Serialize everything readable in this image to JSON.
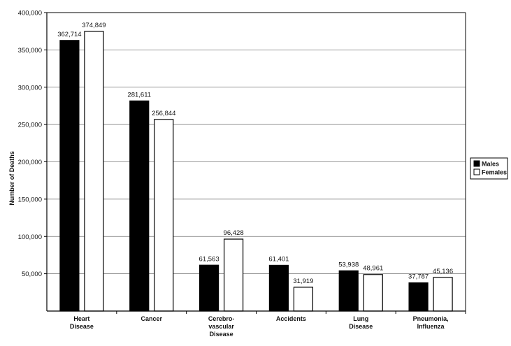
{
  "chart_data": {
    "type": "bar",
    "title": "",
    "xlabel": "",
    "ylabel": "Number of Deaths",
    "ylim": [
      0,
      400000
    ],
    "y_ticks": [
      "50,000",
      "100,000",
      "150,000",
      "200,000",
      "250,000",
      "300,000",
      "350,000",
      "400,000"
    ],
    "y_tick_values": [
      50000,
      100000,
      150000,
      200000,
      250000,
      300000,
      350000,
      400000
    ],
    "grid": true,
    "legend_position": "right",
    "categories": [
      [
        "Heart",
        "Disease"
      ],
      [
        "Cancer"
      ],
      [
        "Cerebro-",
        "vascular",
        "Disease"
      ],
      [
        "Accidents"
      ],
      [
        "Lung",
        "Disease"
      ],
      [
        "Pneumonia,",
        "Influenza"
      ]
    ],
    "series": [
      {
        "name": "Males",
        "color": "#000000",
        "values": [
          362714,
          281611,
          61563,
          61401,
          53938,
          37787
        ],
        "labels": [
          "362,714",
          "281,611",
          "61,563",
          "61,401",
          "53,938",
          "37,787"
        ]
      },
      {
        "name": "Females",
        "color": "#ffffff",
        "values": [
          374849,
          256844,
          96428,
          31919,
          48961,
          45136
        ],
        "labels": [
          "374,849",
          "256,844",
          "96,428",
          "31,919",
          "48,961",
          "45,136"
        ]
      }
    ]
  }
}
